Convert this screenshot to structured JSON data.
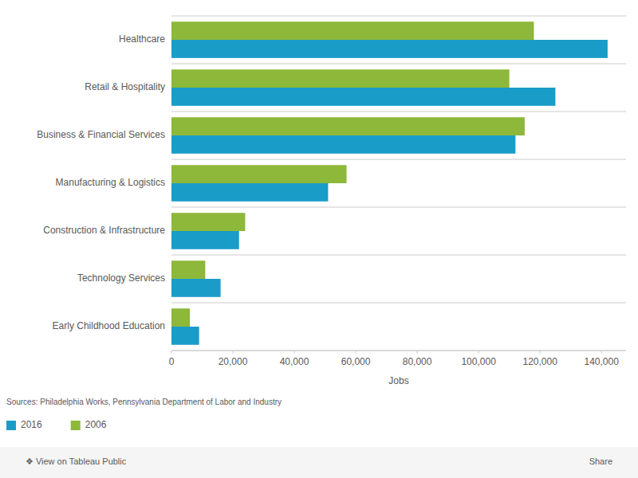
{
  "chart_data": {
    "type": "bar",
    "orientation": "horizontal",
    "categories": [
      "Healthcare",
      "Retail & Hospitality",
      "Business & Financial Services",
      "Manufacturing & Logistics",
      "Construction & Infrastructure",
      "Technology Services",
      "Early Childhood Education"
    ],
    "series": [
      {
        "name": "2016",
        "color": "#1a9cc9",
        "values": [
          142000,
          125000,
          112000,
          51000,
          22000,
          16000,
          9000
        ]
      },
      {
        "name": "2006",
        "color": "#8db83a",
        "values": [
          118000,
          110000,
          115000,
          57000,
          24000,
          11000,
          6000
        ]
      }
    ],
    "xlabel": "Jobs",
    "xlim": [
      0,
      148000
    ],
    "xticks": [
      0,
      {
        "value": 20000,
        "label": "20,000"
      },
      {
        "value": 40000,
        "label": "40,000"
      },
      {
        "value": 60000,
        "label": "60,000"
      },
      {
        "value": 80000,
        "label": "80,000"
      },
      {
        "value": 100000,
        "label": "100,000"
      },
      {
        "value": 120000,
        "label": "120,000"
      },
      {
        "value": 140000,
        "label": "140,000"
      }
    ],
    "grid": false,
    "legend": "lower left",
    "annotations": [
      "Sources: Philadelphia Works, Pennsylvania Department of Labor and Industry",
      "❖ View on Tableau Public",
      "Share"
    ]
  }
}
